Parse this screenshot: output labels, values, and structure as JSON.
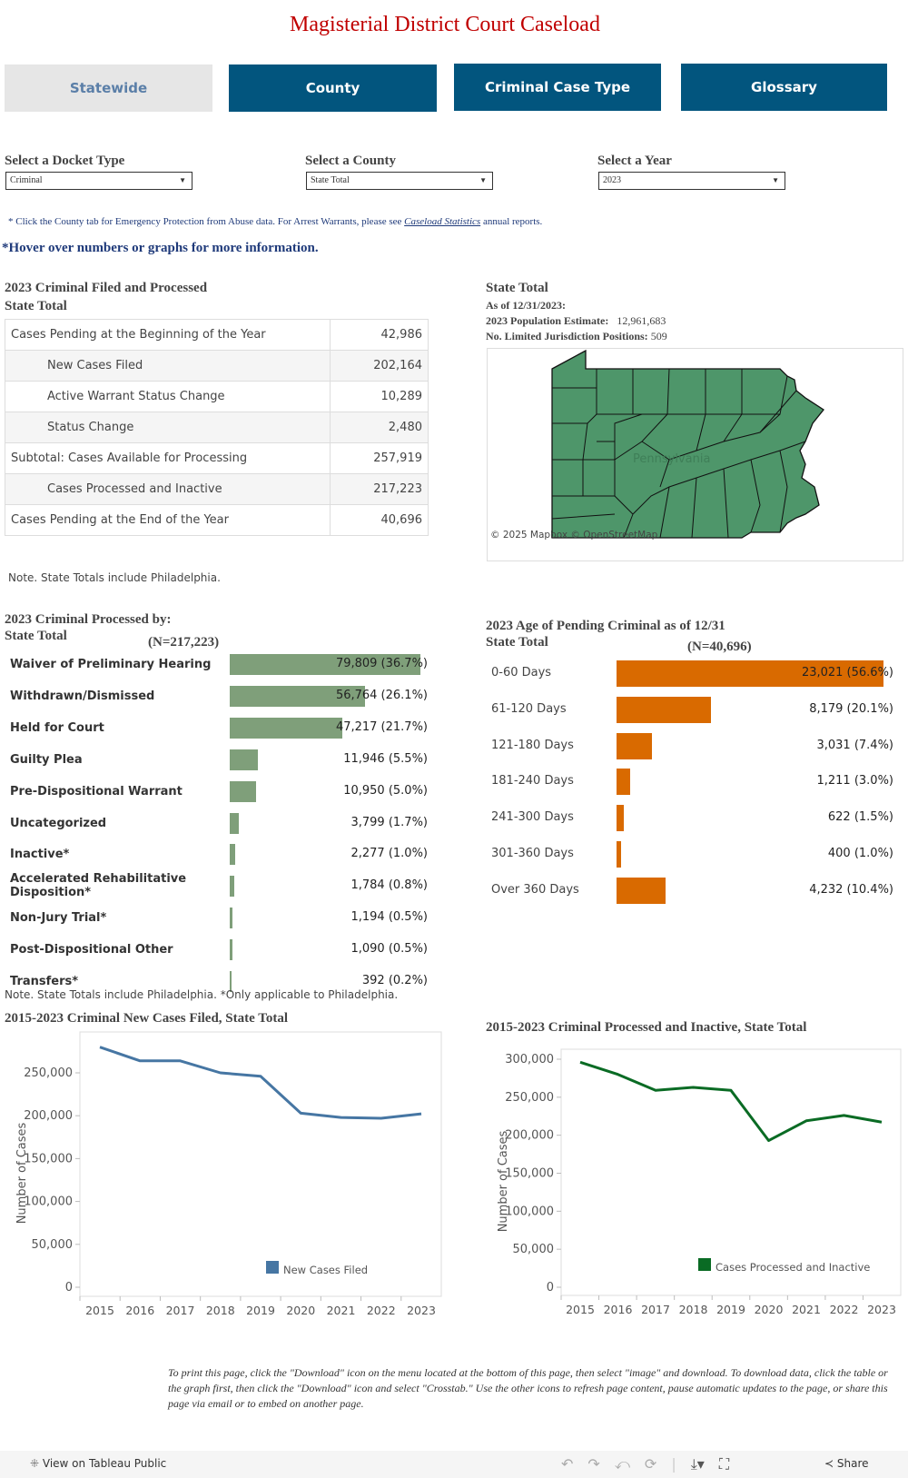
{
  "title": "Magisterial District Court Caseload",
  "tabs": [
    {
      "label": "Statewide",
      "active": true
    },
    {
      "label": "County"
    },
    {
      "label": "Criminal Case Type"
    },
    {
      "label": "Glossary"
    }
  ],
  "filters": [
    {
      "label": "Select a Docket Type",
      "value": "Criminal"
    },
    {
      "label": "Select a County",
      "value": "State Total"
    },
    {
      "label": "Select a Year",
      "value": "2023"
    }
  ],
  "notice": {
    "prefix": "* Click the County tab for Emergency Protection from Abuse data. For Arrest Warrants, please see ",
    "link": "Caseload Statistics",
    "suffix": " annual reports."
  },
  "hover_note": "*Hover over numbers or graphs for more information.",
  "summary": {
    "title": "2023 Criminal Filed and Processed",
    "subtitle": "State Total",
    "rows": [
      {
        "label": "Cases Pending at the Beginning of the Year",
        "value": "42,986",
        "indent": false
      },
      {
        "label": "New Cases Filed",
        "value": "202,164",
        "indent": true
      },
      {
        "label": "Active Warrant Status Change",
        "value": "10,289",
        "indent": true
      },
      {
        "label": "Status Change",
        "value": "2,480",
        "indent": true
      },
      {
        "label": "Subtotal: Cases Available for Processing",
        "value": "257,919",
        "indent": false
      },
      {
        "label": "Cases Processed and Inactive",
        "value": "217,223",
        "indent": true
      },
      {
        "label": "Cases Pending at the End of the Year",
        "value": "40,696",
        "indent": false
      }
    ],
    "note": "Note. State Totals include Philadelphia."
  },
  "state_info": {
    "title": "State Total",
    "as_of": "As of 12/31/2023:",
    "pop_label": "2023 Population Estimate:",
    "pop_value": "12,961,683",
    "pos_label": "No. Limited Jurisdiction Positions:",
    "pos_value": "509",
    "map_label": "Pennsylvania",
    "map_credit": "© 2025 Mapbox  © OpenStreetMap",
    "map_color": "#4e966a"
  },
  "processed_by": {
    "title": "2023 Criminal Processed by:",
    "subtitle": "State Total",
    "n": "(N=217,223)",
    "color": "#7f9f7a",
    "rows": [
      {
        "label": "Waiver of Preliminary Hearing",
        "value": 79809,
        "text": "79,809 (36.7%)"
      },
      {
        "label": "Withdrawn/Dismissed",
        "value": 56764,
        "text": "56,764 (26.1%)"
      },
      {
        "label": "Held for Court",
        "value": 47217,
        "text": "47,217 (21.7%)"
      },
      {
        "label": "Guilty Plea",
        "value": 11946,
        "text": "11,946 (5.5%)"
      },
      {
        "label": "Pre-Dispositional Warrant",
        "value": 10950,
        "text": "10,950 (5.0%)"
      },
      {
        "label": "Uncategorized",
        "value": 3799,
        "text": "3,799 (1.7%)"
      },
      {
        "label": "Inactive*",
        "value": 2277,
        "text": "2,277 (1.0%)"
      },
      {
        "label": "Accelerated Rehabilitative Disposition*",
        "value": 1784,
        "text": "1,784 (0.8%)"
      },
      {
        "label": "Non-Jury Trial*",
        "value": 1194,
        "text": "1,194 (0.5%)"
      },
      {
        "label": "Post-Dispositional Other",
        "value": 1090,
        "text": "1,090 (0.5%)"
      },
      {
        "label": "Transfers*",
        "value": 392,
        "text": "392 (0.2%)"
      }
    ],
    "note": "Note. State Totals include Philadelphia.  *Only applicable to Philadelphia."
  },
  "age_pending": {
    "title": "2023 Age of Pending Criminal as of 12/31",
    "subtitle": "State Total",
    "n": "(N=40,696)",
    "color": "#d96a00",
    "rows": [
      {
        "label": "0-60 Days",
        "value": 23021,
        "text": "23,021 (56.6%)"
      },
      {
        "label": "61-120 Days",
        "value": 8179,
        "text": "8,179 (20.1%)"
      },
      {
        "label": "121-180 Days",
        "value": 3031,
        "text": "3,031 (7.4%)"
      },
      {
        "label": "181-240 Days",
        "value": 1211,
        "text": "1,211 (3.0%)"
      },
      {
        "label": "241-300 Days",
        "value": 622,
        "text": "622 (1.5%)"
      },
      {
        "label": "301-360 Days",
        "value": 400,
        "text": "400 (1.0%)"
      },
      {
        "label": "Over 360 Days",
        "value": 4232,
        "text": "4,232 (10.4%)"
      }
    ]
  },
  "chart_data": [
    {
      "type": "line",
      "title": "2015-2023 Criminal New Cases Filed, State Total",
      "ylabel": "Number of Cases",
      "xlabel": "",
      "x": [
        "2015",
        "2016",
        "2017",
        "2018",
        "2019",
        "2020",
        "2021",
        "2022",
        "2023"
      ],
      "ylim": [
        0,
        290000
      ],
      "yticks": [
        0,
        50000,
        100000,
        150000,
        200000,
        250000
      ],
      "ytick_labels": [
        "0",
        "50,000",
        "100,000",
        "150,000",
        "200,000",
        "250,000"
      ],
      "series": [
        {
          "name": "New Cases Filed",
          "color": "#4676a3",
          "values": [
            280000,
            264000,
            264000,
            250000,
            246000,
            203000,
            198000,
            197000,
            202164
          ]
        }
      ],
      "legend": "bottom-right",
      "grid": false
    },
    {
      "type": "line",
      "title": "2015-2023 Criminal Processed and Inactive, State Total",
      "ylabel": "Number of Cases",
      "xlabel": "",
      "x": [
        "2015",
        "2016",
        "2017",
        "2018",
        "2019",
        "2020",
        "2021",
        "2022",
        "2023"
      ],
      "ylim": [
        0,
        310000
      ],
      "yticks": [
        0,
        50000,
        100000,
        150000,
        200000,
        250000,
        300000
      ],
      "ytick_labels": [
        "0",
        "50,000",
        "100,000",
        "150,000",
        "200,000",
        "250,000",
        "300,000"
      ],
      "series": [
        {
          "name": "Cases Processed and Inactive",
          "color": "#0a6b24",
          "values": [
            296000,
            280000,
            259000,
            263000,
            259000,
            193000,
            219000,
            226000,
            217223
          ]
        }
      ],
      "legend": "bottom-right",
      "grid": false
    }
  ],
  "footer_text": "To print this page, click the \"Download\" icon on the menu located at the bottom of this page, then select \"image\" and download. To download data, click the table or the graph first, then click the \"Download\" icon and select \"Crosstab.\" Use the other icons to refresh page content, pause automatic updates to the page, or share this page via email or to embed on another page.",
  "toolbar": {
    "view_label": "View on Tableau Public",
    "share_label": "Share"
  }
}
